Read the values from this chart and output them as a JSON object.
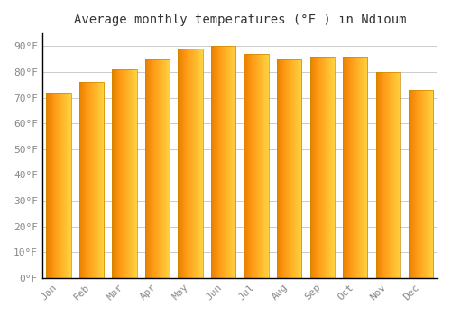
{
  "title": "Average monthly temperatures (°F ) in Ndioum",
  "months": [
    "Jan",
    "Feb",
    "Mar",
    "Apr",
    "May",
    "Jun",
    "Jul",
    "Aug",
    "Sep",
    "Oct",
    "Nov",
    "Dec"
  ],
  "values": [
    72,
    76,
    81,
    85,
    89,
    90,
    87,
    85,
    86,
    86,
    80,
    73
  ],
  "bar_color_left": "#E88000",
  "bar_color_right": "#FFD040",
  "background_color": "#FFFFFF",
  "plot_bg_color": "#FFFFFF",
  "grid_color": "#CCCCCC",
  "ylim": [
    0,
    95
  ],
  "yticks": [
    0,
    10,
    20,
    30,
    40,
    50,
    60,
    70,
    80,
    90
  ],
  "ytick_labels": [
    "0°F",
    "10°F",
    "20°F",
    "30°F",
    "40°F",
    "50°F",
    "60°F",
    "70°F",
    "80°F",
    "90°F"
  ],
  "title_fontsize": 10,
  "tick_fontsize": 8,
  "font_family": "monospace",
  "tick_color": "#888888",
  "spine_color": "#000000"
}
